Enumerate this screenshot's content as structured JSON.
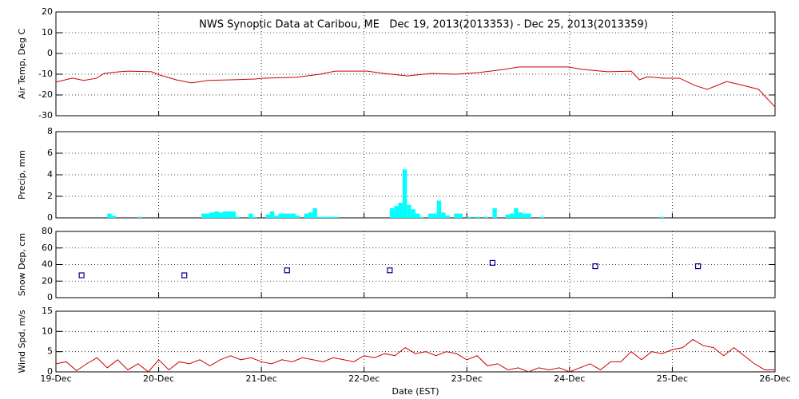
{
  "chart_data": [
    {
      "type": "line",
      "title": "NWS Synoptic Data at Caribou, ME   Dec 19, 2013(2013353) - Dec 25, 2013(2013359)",
      "y_label": "Air Temp, Deg C",
      "xlim": [
        19,
        26
      ],
      "xticks": [
        19,
        20,
        21,
        22,
        23,
        24,
        25,
        26
      ],
      "ylim": [
        -30,
        20
      ],
      "yticks": [
        -30,
        -20,
        -10,
        0,
        10,
        20
      ],
      "grid": true,
      "series": [
        {
          "color": "#cc0000",
          "x": [
            19.0,
            19.16,
            19.27,
            19.39,
            19.47,
            19.62,
            19.7,
            19.93,
            20.01,
            20.17,
            20.32,
            20.48,
            20.71,
            20.94,
            21.02,
            21.33,
            21.57,
            21.72,
            22.03,
            22.19,
            22.42,
            22.66,
            22.89,
            23.12,
            23.36,
            23.51,
            23.98,
            24.13,
            24.37,
            24.6,
            24.68,
            24.76,
            24.91,
            25.07,
            25.22,
            25.34,
            25.53,
            25.69,
            25.84,
            26.0
          ],
          "values": [
            -13.8,
            -11.9,
            -13,
            -12,
            -9.6,
            -8.8,
            -8.5,
            -8.8,
            -10.4,
            -12.7,
            -14.2,
            -13,
            -12.7,
            -12.3,
            -11.9,
            -11.5,
            -10,
            -8.5,
            -8.5,
            -9.6,
            -10.8,
            -9.6,
            -10,
            -9.2,
            -7.7,
            -6.5,
            -6.5,
            -7.7,
            -8.8,
            -8.5,
            -12.7,
            -11.2,
            -11.9,
            -11.9,
            -15.4,
            -17.3,
            -13.5,
            -15.4,
            -17.3,
            -25.8
          ]
        }
      ]
    },
    {
      "type": "bar",
      "y_label": "Precip, mm",
      "xlim": [
        19,
        26
      ],
      "xticks": [
        19,
        20,
        21,
        22,
        23,
        24,
        25,
        26
      ],
      "ylim": [
        0,
        8
      ],
      "yticks": [
        0,
        2,
        4,
        6,
        8
      ],
      "grid": true,
      "series": [
        {
          "color": "#00ffff",
          "x": [
            19.5,
            19.542,
            19.792,
            20.417,
            20.458,
            20.5,
            20.542,
            20.583,
            20.625,
            20.667,
            20.708,
            20.75,
            20.875,
            20.917,
            21.042,
            21.083,
            21.125,
            21.167,
            21.208,
            21.25,
            21.292,
            21.333,
            21.417,
            21.458,
            21.5,
            21.542,
            21.583,
            21.625,
            21.667,
            21.708,
            22.25,
            22.292,
            22.333,
            22.375,
            22.417,
            22.458,
            22.5,
            22.542,
            22.625,
            22.667,
            22.708,
            22.75,
            22.792,
            22.875,
            22.917,
            23.0,
            23.083,
            23.167,
            23.25,
            23.375,
            23.417,
            23.458,
            23.5,
            23.542,
            23.583,
            23.708,
            24.875
          ],
          "values": [
            0.4,
            0.2,
            0.1,
            0.4,
            0.4,
            0.5,
            0.6,
            0.5,
            0.6,
            0.6,
            0.6,
            0.1,
            0.4,
            0.1,
            0.3,
            0.6,
            0.2,
            0.4,
            0.4,
            0.4,
            0.4,
            0.2,
            0.4,
            0.5,
            0.9,
            0.1,
            0.1,
            0.1,
            0.1,
            0.1,
            0.9,
            1.1,
            1.4,
            4.5,
            1.2,
            0.8,
            0.4,
            0.1,
            0.4,
            0.4,
            1.6,
            0.5,
            0.2,
            0.4,
            0.4,
            0.1,
            0.1,
            0.1,
            0.9,
            0.3,
            0.4,
            0.9,
            0.5,
            0.4,
            0.4,
            0.1,
            0.1
          ]
        }
      ]
    },
    {
      "type": "scatter",
      "y_label": "Snow Dep, cm",
      "xlim": [
        19,
        26
      ],
      "xticks": [
        19,
        20,
        21,
        22,
        23,
        24,
        25,
        26
      ],
      "ylim": [
        0,
        80
      ],
      "yticks": [
        0,
        20,
        40,
        60,
        80
      ],
      "grid": true,
      "series": [
        {
          "color": "#00008b",
          "x": [
            19.25,
            20.25,
            21.25,
            22.25,
            23.25,
            24.25,
            25.25
          ],
          "values": [
            27,
            27,
            33,
            33,
            42,
            38,
            38
          ]
        }
      ]
    },
    {
      "type": "line",
      "y_label": "Wind Spd, m/s",
      "x_label": "Date (EST)",
      "xlim": [
        19,
        26
      ],
      "xticks": [
        {
          "value": 19,
          "label": "19-Dec"
        },
        {
          "value": 20,
          "label": "20-Dec"
        },
        {
          "value": 21,
          "label": "21-Dec"
        },
        {
          "value": 22,
          "label": "22-Dec"
        },
        {
          "value": 23,
          "label": "23-Dec"
        },
        {
          "value": 24,
          "label": "24-Dec"
        },
        {
          "value": 25,
          "label": "25-Dec"
        },
        {
          "value": 26,
          "label": "26-Dec"
        }
      ],
      "ylim": [
        0,
        15
      ],
      "yticks": [
        0,
        5,
        10,
        15
      ],
      "grid": true,
      "series": [
        {
          "color": "#cc0000",
          "x": [
            19.0,
            19.1,
            19.2,
            19.3,
            19.4,
            19.5,
            19.6,
            19.7,
            19.8,
            19.9,
            20.0,
            20.1,
            20.2,
            20.3,
            20.4,
            20.5,
            20.6,
            20.7,
            20.8,
            20.9,
            21.0,
            21.1,
            21.2,
            21.3,
            21.4,
            21.5,
            21.6,
            21.7,
            21.8,
            21.9,
            22.0,
            22.1,
            22.2,
            22.3,
            22.4,
            22.5,
            22.6,
            22.7,
            22.8,
            22.9,
            23.0,
            23.1,
            23.2,
            23.3,
            23.4,
            23.5,
            23.6,
            23.7,
            23.8,
            23.9,
            24.0,
            24.1,
            24.2,
            24.3,
            24.4,
            24.5,
            24.6,
            24.7,
            24.8,
            24.9,
            25.0,
            25.1,
            25.2,
            25.3,
            25.4,
            25.5,
            25.6,
            25.7,
            25.8,
            25.9,
            26.0
          ],
          "values": [
            2,
            2.5,
            0.3,
            2,
            3.5,
            1,
            3,
            0.5,
            2,
            0,
            3,
            0.5,
            2.5,
            2,
            3,
            1.5,
            3,
            4,
            3,
            3.5,
            2.5,
            2,
            3,
            2.5,
            3.5,
            3,
            2.5,
            3.5,
            3,
            2.5,
            4,
            3.5,
            4.5,
            4,
            6,
            4.5,
            5,
            4,
            5,
            4.5,
            3,
            4,
            1.5,
            2,
            0.5,
            1,
            0,
            1,
            0.5,
            1,
            0,
            1,
            2,
            0.5,
            2.5,
            2.5,
            5,
            3,
            5,
            4.5,
            5.5,
            6,
            8,
            6.5,
            6,
            4,
            6,
            4,
            2,
            0.5,
            0.5
          ]
        }
      ]
    }
  ]
}
